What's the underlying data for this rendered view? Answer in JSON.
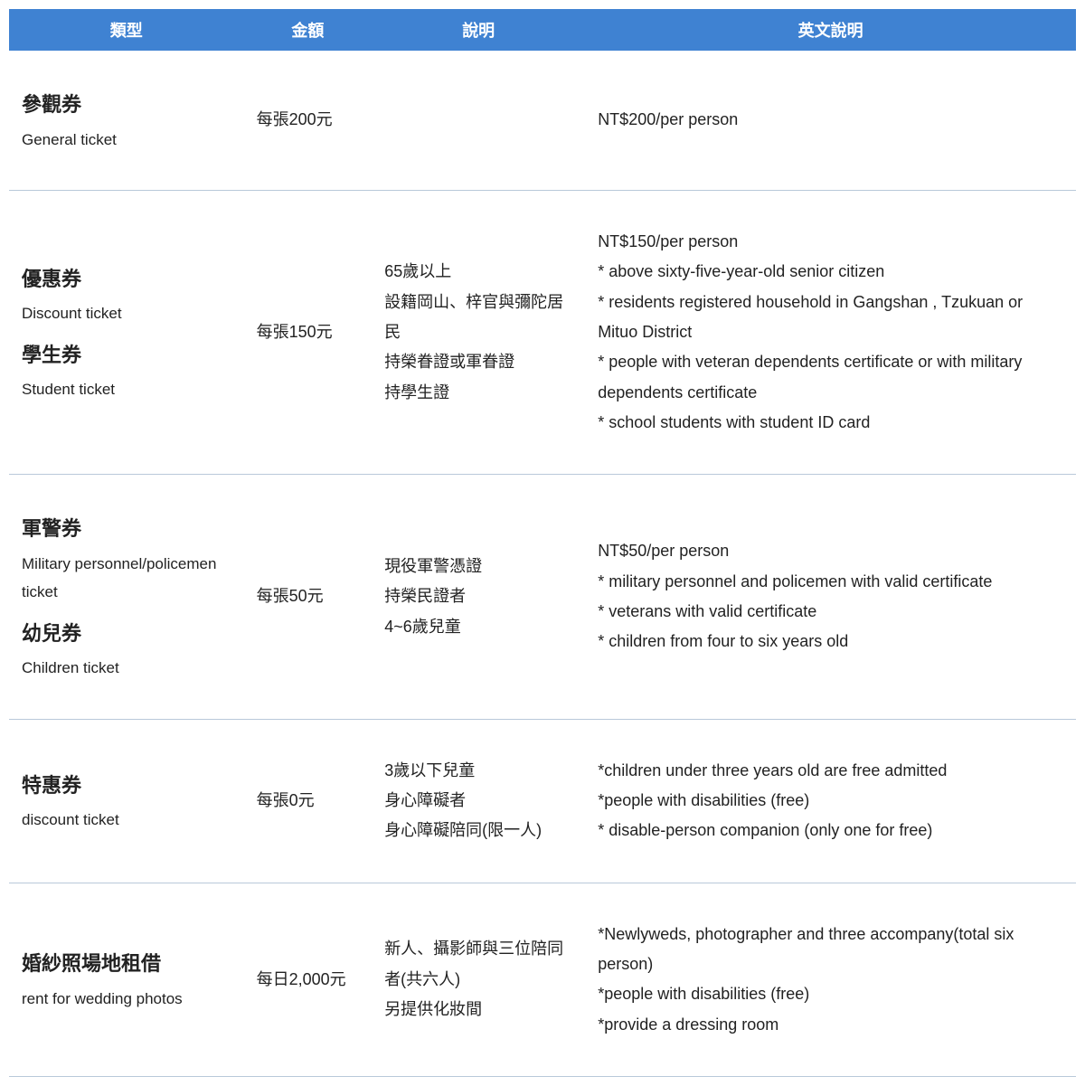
{
  "colors": {
    "header_bg": "#3f82d2",
    "header_text": "#ffffff",
    "row_border": "#b9c9da",
    "body_bg": "#ffffff",
    "text_color": "#222222"
  },
  "typography": {
    "header_fontsize_pt": 14,
    "body_fontsize_pt": 14,
    "title_fontsize_pt": 17,
    "line_height": 1.85
  },
  "columns": [
    {
      "key": "type",
      "label": "類型",
      "width_pct": 22,
      "align": "center"
    },
    {
      "key": "price",
      "label": "金額",
      "width_pct": 12,
      "align": "left"
    },
    {
      "key": "desc",
      "label": "說明",
      "width_pct": 20,
      "align": "left"
    },
    {
      "key": "en",
      "label": "英文說明",
      "width_pct": 46,
      "align": "left"
    }
  ],
  "rows": [
    {
      "type_groups": [
        {
          "main": "參觀券",
          "sub": "General ticket"
        }
      ],
      "price": "每張200元",
      "desc_lines": [],
      "en_lines": [
        "NT$200/per person"
      ]
    },
    {
      "type_groups": [
        {
          "main": "優惠券",
          "sub": "Discount ticket"
        },
        {
          "main": "學生券",
          "sub": "Student ticket"
        }
      ],
      "price": "每張150元",
      "desc_lines": [
        "65歲以上",
        "設籍岡山、梓官與彌陀居民",
        "持榮眷證或軍眷證",
        "持學生證"
      ],
      "en_lines": [
        "NT$150/per person",
        "* above sixty-five-year-old senior citizen",
        "* residents registered household in Gangshan , Tzukuan or Mituo District",
        "* people with veteran dependents certificate or with military dependents certificate",
        "* school students with student ID card"
      ]
    },
    {
      "type_groups": [
        {
          "main": "軍警券",
          "sub": "Military personnel/policemen ticket"
        },
        {
          "main": "幼兒券",
          "sub": "Children ticket"
        }
      ],
      "price": "每張50元",
      "desc_lines": [
        "現役軍警憑證",
        "持榮民證者",
        "4~6歲兒童"
      ],
      "en_lines": [
        "NT$50/per person",
        "* military personnel and policemen with valid certificate",
        "* veterans with valid certificate",
        "* children from four to six years old"
      ]
    },
    {
      "type_groups": [
        {
          "main": "特惠券",
          "sub": "discount ticket"
        }
      ],
      "price": "每張0元",
      "desc_lines": [
        "3歲以下兒童",
        "身心障礙者",
        "身心障礙陪同(限一人)"
      ],
      "en_lines": [
        "*children under three years old are free admitted",
        "*people with disabilities (free)",
        "* disable-person companion (only one for free)"
      ]
    },
    {
      "type_groups": [
        {
          "main": "婚紗照場地租借",
          "sub": "rent for wedding photos"
        }
      ],
      "price": "每日2,000元",
      "desc_lines": [
        "新人、攝影師與三位陪同者(共六人)",
        "另提供化妝間"
      ],
      "en_lines": [
        "*Newlyweds, photographer and three accompany(total six person)",
        "*people with disabilities (free)",
        "*provide a dressing room"
      ]
    }
  ]
}
